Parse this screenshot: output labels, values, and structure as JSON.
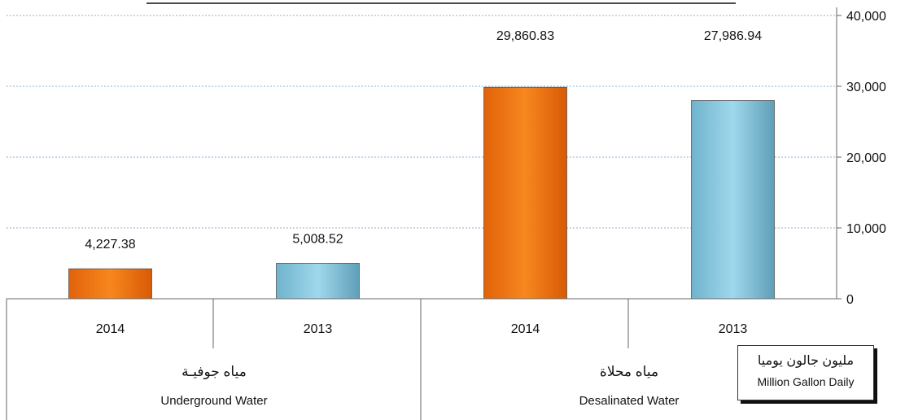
{
  "chart_data": {
    "type": "bar",
    "groups": [
      {
        "label_ar": "مياه جوفيـة",
        "label_en": "Underground Water",
        "categories": [
          "2014",
          "2013"
        ],
        "values": [
          4227.38,
          5008.52
        ]
      },
      {
        "label_ar": "مياه محلاة",
        "label_en": "Desalinated Water",
        "categories": [
          "2014",
          "2013"
        ],
        "values": [
          29860.83,
          27986.94
        ]
      }
    ],
    "series_colors": {
      "2014": "#f07812",
      "2013": "#8fd0e6"
    },
    "value_labels": [
      "4,227.38",
      "5,008.52",
      "29,860.83",
      "27,986.94"
    ],
    "ylim": [
      0,
      40000
    ],
    "yticks": [
      0,
      10000,
      20000,
      30000,
      40000
    ],
    "ytick_labels": [
      "0",
      "10,000",
      "20,000",
      "30,000",
      "40,000"
    ],
    "y_axis_side": "right",
    "grid": true,
    "unit_label_ar": "مليون جالون يوميا",
    "unit_label_en": "Million Gallon Daily"
  }
}
